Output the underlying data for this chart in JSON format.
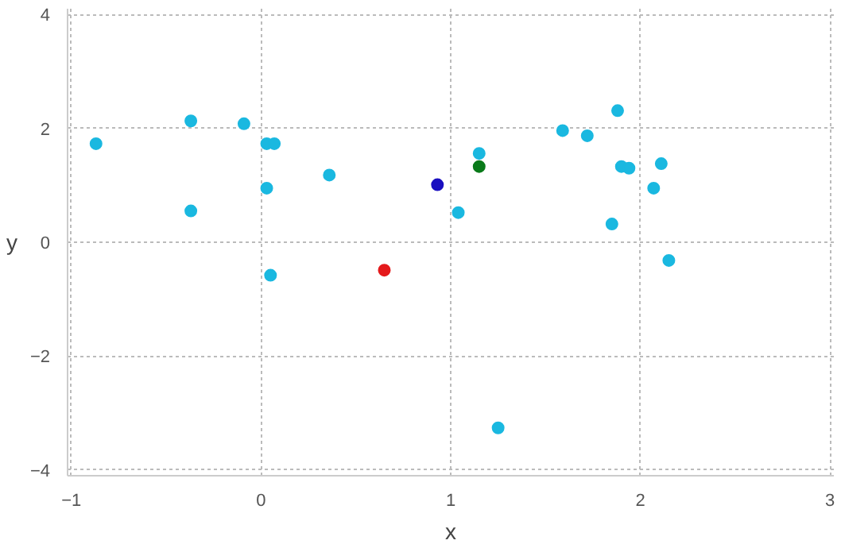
{
  "chart_data": {
    "type": "scatter",
    "xlabel": "x",
    "ylabel": "y",
    "xlim": [
      -1.02,
      3.02
    ],
    "ylim": [
      -4.1,
      4.1
    ],
    "xticks": [
      -1,
      0,
      1,
      2,
      3
    ],
    "yticks": [
      -4,
      -2,
      0,
      2,
      4
    ],
    "grid": true,
    "marker": "circle",
    "series": [
      {
        "color": "#1ab8e0",
        "x": [
          -0.87,
          -0.37,
          -0.37,
          -0.09,
          0.03,
          0.07,
          0.03,
          0.05,
          0.36,
          1.04,
          1.15,
          1.25,
          1.59,
          1.72,
          1.88,
          1.9,
          1.94,
          1.85,
          2.07,
          2.11,
          2.15
        ],
        "values": [
          1.73,
          2.13,
          0.55,
          2.08,
          1.73,
          1.73,
          0.95,
          -0.58,
          1.18,
          0.52,
          1.56,
          -3.26,
          1.96,
          1.87,
          2.31,
          1.33,
          1.3,
          0.32,
          0.95,
          1.38,
          -0.32
        ]
      },
      {
        "color": "#e41a1c",
        "x": [
          0.65
        ],
        "values": [
          -0.49
        ]
      },
      {
        "color": "#1a0fc0",
        "x": [
          0.93
        ],
        "values": [
          1.01
        ]
      },
      {
        "color": "#0a7a1a",
        "x": [
          1.15
        ],
        "values": [
          1.33
        ]
      }
    ]
  }
}
